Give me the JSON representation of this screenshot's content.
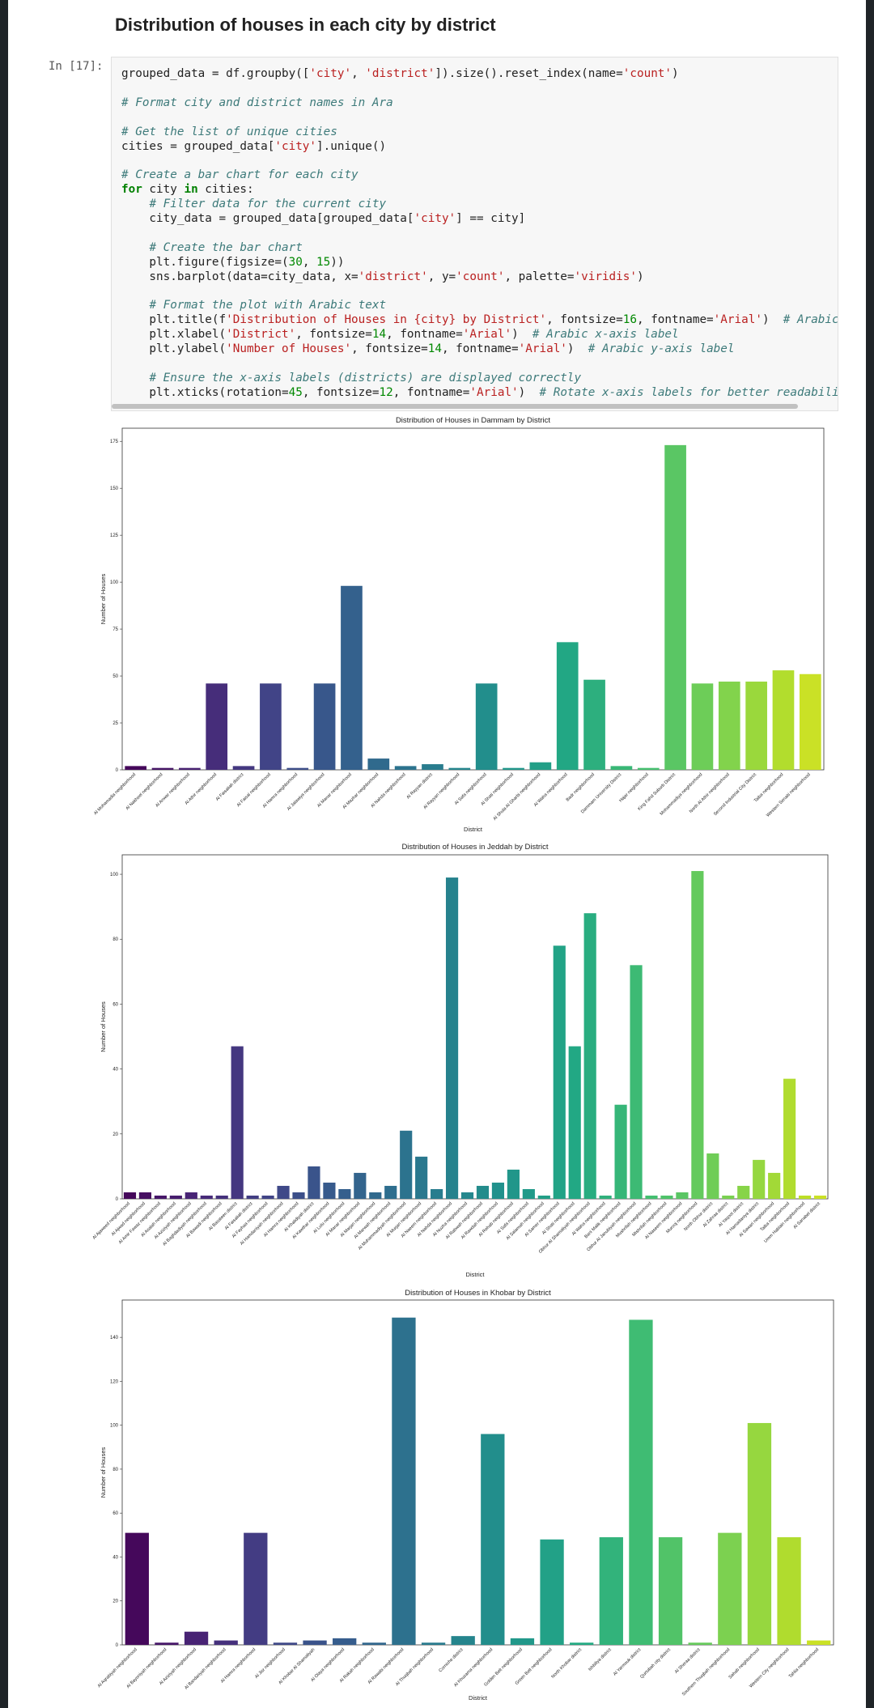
{
  "header": {
    "title": "Distribution of houses in each city by district"
  },
  "cell": {
    "prompt": "In [17]:",
    "code": [
      [
        "grouped_data = df.groupby(['city', 'district']).size().reset_index(name='count')"
      ],
      [
        "# Format city and district names in Ara"
      ],
      [
        "# Get the list of unique cities",
        "cities = grouped_data['city'].unique()"
      ],
      [
        "# Create a bar chart for each city",
        "for city in cities:",
        "    # Filter data for the current city",
        "    city_data = grouped_data[grouped_data['city'] == city]"
      ],
      [
        "    # Create the bar chart",
        "    plt.figure(figsize=(30, 15))",
        "    sns.barplot(data=city_data, x='district', y='count', palette='viridis')"
      ],
      [
        "    # Format the plot with Arabic text",
        "    plt.title(f'Distribution of Houses in {city} by District', fontsize=16, fontname='Arial')  # Arabic",
        "    plt.xlabel('District', fontsize=14, fontname='Arial')  # Arabic x-axis label",
        "    plt.ylabel('Number of Houses', fontsize=14, fontname='Arial')  # Arabic y-axis label"
      ],
      [
        "    # Ensure the x-axis labels (districts) are displayed correctly",
        "    plt.xticks(rotation=45, fontsize=12, fontname='Arial')  # Rotate x-axis labels for better readabili"
      ]
    ]
  },
  "chart_data": [
    {
      "type": "bar",
      "title": "Distribution of Houses in Dammam by District",
      "xlabel": "District",
      "ylabel": "Number of Houses",
      "palette": "viridis",
      "categories": [
        "Al Mohamadia neighborhood",
        "Al Nakheel neighborhood",
        "Al Anwar neighborhood",
        "Al Athir neighborhood",
        "Al Faisaliah district",
        "Al Faisal neighborhood",
        "Al Hamra neighborhood",
        "Al Jalawiya neighborhood",
        "Al Manar neighborhood",
        "Al Mazhar neighborhood",
        "Al Nahda neighborhood",
        "Al Rayyan district",
        "Al Rayyan neighborhood",
        "Al Safa neighborhood",
        "Al Shati neighborhood",
        "Al Shula Al Gharbi neighborhood",
        "Al Waha neighborhood",
        "Badr neighborhood",
        "Dammam University District",
        "Hajar neighborhood",
        "King Fahd Suburb District",
        "Mohammadiya neighborhood",
        "North Al Athir neighborhood",
        "Second Industrial City District",
        "Taiba neighborhood",
        "Western Senaiti neighborhood"
      ],
      "values": [
        2,
        1,
        1,
        46,
        2,
        46,
        1,
        46,
        98,
        6,
        2,
        3,
        1,
        46,
        1,
        4,
        68,
        48,
        2,
        1,
        173,
        46,
        47,
        47,
        53,
        51
      ],
      "ylim": [
        0,
        182
      ],
      "yticks": [
        0,
        25,
        50,
        75,
        100,
        125,
        150,
        175
      ]
    },
    {
      "type": "bar",
      "title": "Distribution of Houses in Jeddah by District",
      "xlabel": "District",
      "ylabel": "Number of Houses",
      "palette": "viridis",
      "categories": [
        "Al Ajaweed neighborhood",
        "Al Ajwad neighborhood",
        "Al Amir Fawaz neighborhood",
        "Al Asalah neighborhood",
        "Al Aziziyah neighborhood",
        "Al Baghdadiyah neighborhood",
        "Al Bawadi neighborhood",
        "Al Basateen district",
        "Al Faisaliah district",
        "Al Fayhaa neighborhood",
        "Al Hamdaniyah neighborhood",
        "Al Hamra neighborhood",
        "Al Khalidiyah district",
        "Al Kawthar neighborhood",
        "Al Lulu neighborhood",
        "Al Manar neighborhood",
        "Al Marjan neighborhood",
        "Al Marwah neighborhood",
        "Al Muhammadiyah neighborhood",
        "Al Murjan neighborhood",
        "Al Naeem neighborhood",
        "Al Nahda neighborhood",
        "Al Nuzha neighborhood",
        "Al Rabwah neighborhood",
        "Al Rawdah neighborhood",
        "Al Rehab neighborhood",
        "Al Safa neighborhood",
        "Al Salamah neighborhood",
        "Al Samer neighborhood",
        "Al Shati neighborhood",
        "Obhur Al Shamaliyah neighborhood",
        "Al Waha neighborhood",
        "Bani Malik neighborhood",
        "Obhur Al Janubiyah neighborhood",
        "Mushrifah neighborhood",
        "Mishrifah neighborhood",
        "Al Naseem neighborhood",
        "Murooj neighborhood",
        "North Obhur district",
        "Al Zahraa district",
        "Al Yaqoot district",
        "Al Hamadaniya district",
        "Al Sawari neighborhood",
        "Taiba neighborhood",
        "Umm Hablain neighborhood",
        "Al Sanabel district"
      ],
      "values": [
        2,
        2,
        1,
        1,
        2,
        1,
        1,
        47,
        1,
        1,
        4,
        2,
        10,
        5,
        3,
        8,
        2,
        4,
        21,
        13,
        3,
        99,
        2,
        4,
        5,
        9,
        3,
        1,
        78,
        47,
        88,
        1,
        29,
        72,
        1,
        1,
        2,
        101,
        14,
        1,
        4,
        12,
        8,
        37,
        1,
        1
      ],
      "ylim": [
        0,
        106
      ],
      "yticks": [
        0,
        20,
        40,
        60,
        80,
        100
      ]
    },
    {
      "type": "bar",
      "title": "Distribution of Houses in Khobar by District",
      "xlabel": "District",
      "ylabel": "Number of Houses",
      "palette": "viridis",
      "categories": [
        "Al Aqrabiyah neighborhood",
        "Al Bayoniyah neighborhood",
        "Al Aziziyah neighborhood",
        "Al Bandariyah neighborhood",
        "Al Hamra neighborhood",
        "Al Jisr neighborhood",
        "Al Khobar Al Shamaliyah",
        "Al Olaya neighborhood",
        "Al Rakah neighborhood",
        "Al Rawabi neighborhood",
        "Al Thuqbah neighborhood",
        "Corniche district",
        "Al Khuzama neighborhood",
        "Golden Belt neighborhood",
        "Green Belt neighborhood",
        "North Khobar district",
        "Ishbiliya district",
        "Al Yarmouk district",
        "Qurtubah city district",
        "Al Sheraa district",
        "Southern Thuqbah neighborhood",
        "Sahab neighborhood",
        "Western City neighborhood",
        "Tahlia neighborhood"
      ],
      "values": [
        51,
        1,
        6,
        2,
        51,
        1,
        2,
        3,
        1,
        149,
        1,
        4,
        96,
        3,
        48,
        1,
        49,
        148,
        49,
        1,
        51,
        101,
        49,
        2
      ],
      "ylim": [
        0,
        157
      ],
      "yticks": [
        0,
        20,
        40,
        60,
        80,
        100,
        120,
        140
      ]
    }
  ]
}
